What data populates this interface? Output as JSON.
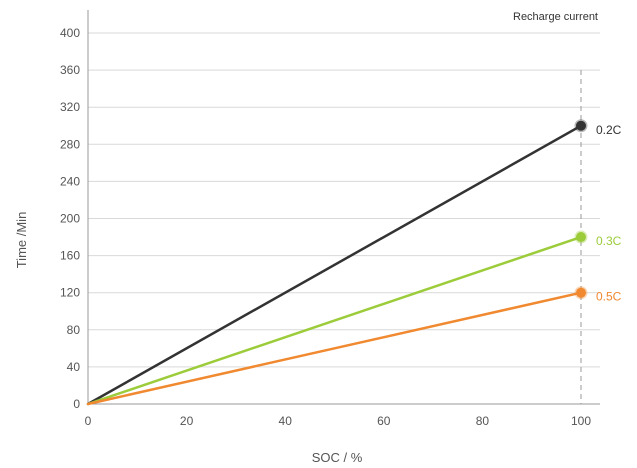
{
  "chart_data": {
    "type": "line",
    "xlabel": "SOC / %",
    "ylabel": "Time /Min",
    "xlim": [
      0,
      100
    ],
    "ylim": [
      0,
      400
    ],
    "xticks": [
      0,
      20,
      40,
      60,
      80,
      100
    ],
    "yticks": [
      0,
      40,
      80,
      120,
      160,
      200,
      240,
      280,
      320,
      360,
      400
    ],
    "grid": "horizontal",
    "legend_title": "Recharge current",
    "reference_line_x": 100,
    "series": [
      {
        "name": "0.2C",
        "x": [
          0,
          100
        ],
        "y": [
          0,
          300
        ],
        "color": "#333333"
      },
      {
        "name": "0.3C",
        "x": [
          0,
          100
        ],
        "y": [
          0,
          180
        ],
        "color": "#9ccc3a"
      },
      {
        "name": "0.5C",
        "x": [
          0,
          100
        ],
        "y": [
          0,
          120
        ],
        "color": "#f0892f"
      }
    ]
  }
}
